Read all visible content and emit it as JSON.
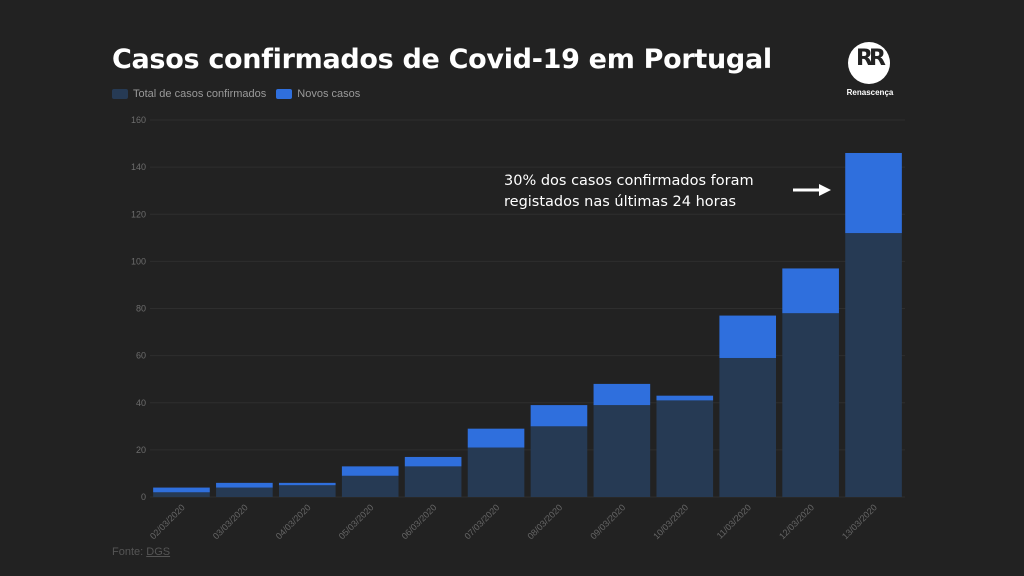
{
  "header": {
    "title": "Casos confirmados de Covid-19 em Portugal",
    "logo_text": "Renascença",
    "logo_mark": "RR"
  },
  "annotation": {
    "line1": "30% dos casos confirmados foram",
    "line2": "registados nas últimas 24 horas",
    "icon": "arrow-right-icon"
  },
  "source": {
    "label": "Fonte:",
    "link": "DGS"
  },
  "colors": {
    "background": "#222222",
    "total": "#263a54",
    "new": "#2f6fdd",
    "grid": "#2e2e2e"
  },
  "chart_data": {
    "type": "bar",
    "stacked": true,
    "title": "Casos confirmados de Covid-19 em Portugal",
    "xlabel": "",
    "ylabel": "",
    "ylim": [
      0,
      160
    ],
    "yticks": [
      0,
      20,
      40,
      60,
      80,
      100,
      120,
      140,
      160
    ],
    "grid": true,
    "legend_position": "top-left",
    "categories": [
      "02/03/2020",
      "03/03/2020",
      "04/03/2020",
      "05/03/2020",
      "06/03/2020",
      "07/03/2020",
      "08/03/2020",
      "09/03/2020",
      "10/03/2020",
      "11/03/2020",
      "12/03/2020",
      "13/03/2020"
    ],
    "series": [
      {
        "name": "Total de casos confirmados",
        "color": "#263a54",
        "values": [
          2,
          4,
          5,
          9,
          13,
          21,
          30,
          39,
          41,
          59,
          78,
          112
        ]
      },
      {
        "name": "Novos casos",
        "color": "#2f6fdd",
        "values": [
          2,
          2,
          1,
          4,
          4,
          8,
          9,
          9,
          2,
          18,
          19,
          34
        ]
      }
    ],
    "annotations": [
      "30% dos casos confirmados foram registados nas últimas 24 horas"
    ]
  }
}
